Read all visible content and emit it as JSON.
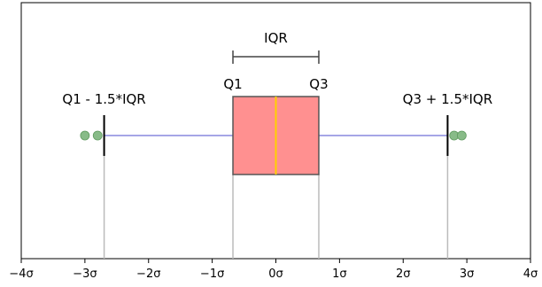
{
  "chart_data": {
    "type": "box",
    "xlim": [
      -4,
      4
    ],
    "grid": false,
    "legend": "none",
    "ticks": [
      {
        "value": -4,
        "label": "−4σ"
      },
      {
        "value": -3,
        "label": "−3σ"
      },
      {
        "value": -2,
        "label": "−2σ"
      },
      {
        "value": -1,
        "label": "−1σ"
      },
      {
        "value": 0,
        "label": "0σ"
      },
      {
        "value": 1,
        "label": "1σ"
      },
      {
        "value": 2,
        "label": "2σ"
      },
      {
        "value": 3,
        "label": "3σ"
      },
      {
        "value": 4,
        "label": "4σ"
      }
    ],
    "box": {
      "whisker_low": -2.698,
      "q1": -0.6745,
      "median": 0,
      "q3": 0.6745,
      "whisker_high": 2.698,
      "outliers": [
        -3.0,
        -2.8,
        2.8,
        2.92
      ]
    },
    "annotations": {
      "iqr": "IQR",
      "q1": "Q1",
      "q3": "Q3",
      "lower_fence": "Q1 - 1.5*IQR",
      "upper_fence": "Q3 + 1.5*IQR"
    },
    "colors": {
      "box_fill": "#ff9090",
      "box_edge": "#555555",
      "median": "#ffd000",
      "whisker": "#8888dd",
      "outlier": "#88bb88",
      "outlier_edge": "#5f9a5f",
      "guide_line": "#bbbbbb",
      "cap": "#000000"
    }
  }
}
